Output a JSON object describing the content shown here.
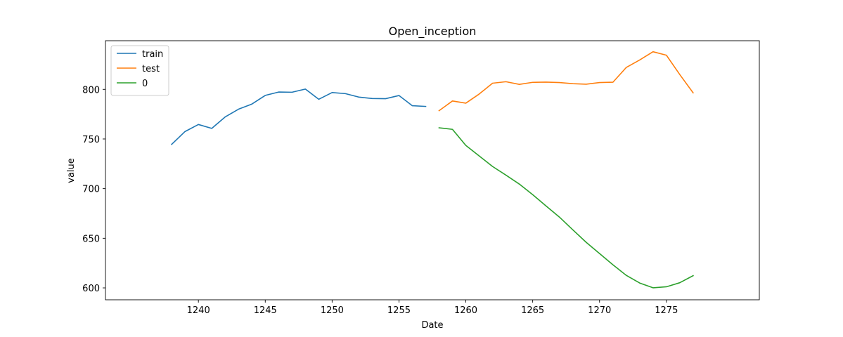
{
  "chart_data": {
    "type": "line",
    "title": "Open_inception",
    "xlabel": "Date",
    "ylabel": "value",
    "xlim": [
      1233.05,
      1281.95
    ],
    "ylim": [
      588.0,
      849.0
    ],
    "xticks": [
      1240,
      1245,
      1250,
      1255,
      1260,
      1265,
      1270,
      1275
    ],
    "yticks": [
      600,
      650,
      700,
      750,
      800
    ],
    "legend_position": "top-left",
    "grid": false,
    "series": [
      {
        "name": "train",
        "color": "#1f77b4",
        "x": [
          1238,
          1239,
          1240,
          1241,
          1242,
          1243,
          1244,
          1245,
          1246,
          1247,
          1248,
          1249,
          1250,
          1251,
          1252,
          1253,
          1254,
          1255,
          1256,
          1257
        ],
        "values": [
          744.6,
          757.5,
          764.6,
          760.7,
          772.2,
          780.0,
          785.2,
          793.9,
          797.3,
          797.1,
          800.3,
          790.0,
          796.8,
          795.7,
          792.2,
          790.8,
          790.6,
          793.8,
          783.5,
          782.8
        ]
      },
      {
        "name": "test",
        "color": "#ff7f0e",
        "x": [
          1258,
          1259,
          1260,
          1261,
          1262,
          1263,
          1264,
          1265,
          1266,
          1267,
          1268,
          1269,
          1270,
          1271,
          1272,
          1273,
          1274,
          1275,
          1276,
          1277
        ],
        "values": [
          778.5,
          788.3,
          786.1,
          795.3,
          806.2,
          807.7,
          805.0,
          807.1,
          807.3,
          806.9,
          805.7,
          805.2,
          806.9,
          807.2,
          822.1,
          829.6,
          837.9,
          834.4,
          814.9,
          796.5
        ]
      },
      {
        "name": "0",
        "color": "#2ca02c",
        "x": [
          1258,
          1259,
          1260,
          1261,
          1262,
          1263,
          1264,
          1265,
          1266,
          1267,
          1268,
          1269,
          1270,
          1271,
          1272,
          1273,
          1274,
          1275,
          1276,
          1277
        ],
        "values": [
          761.3,
          759.7,
          743.5,
          732.9,
          722.3,
          713.6,
          704.6,
          693.9,
          682.5,
          671.3,
          658.5,
          645.9,
          634.6,
          623.3,
          612.6,
          604.9,
          600.1,
          601.1,
          605.2,
          612.3
        ]
      }
    ]
  }
}
